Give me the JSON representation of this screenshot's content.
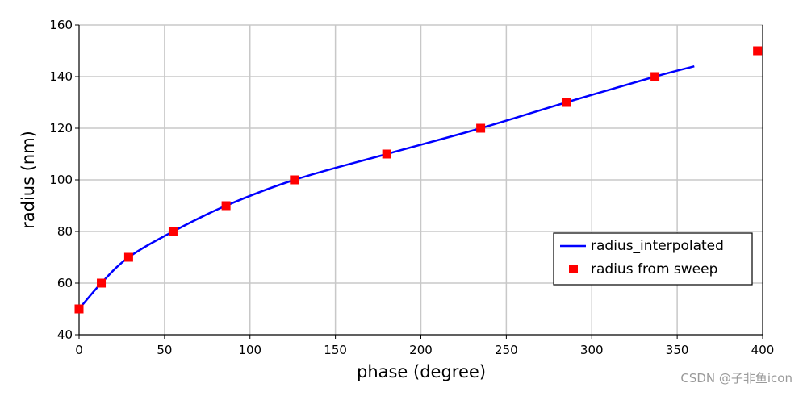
{
  "chart_data": {
    "type": "line",
    "xlabel": "phase (degree)",
    "ylabel": "radius (nm)",
    "xlim": [
      0,
      400
    ],
    "ylim": [
      40,
      160
    ],
    "xticks": [
      0,
      50,
      100,
      150,
      200,
      250,
      300,
      350,
      400
    ],
    "yticks": [
      40,
      60,
      80,
      100,
      120,
      140,
      160
    ],
    "grid": true,
    "legend_position": "lower-right",
    "series": [
      {
        "name": "radius_interpolated",
        "kind": "line",
        "color": "#0000ff",
        "x": [
          0,
          13,
          29,
          55,
          86,
          126,
          180,
          235,
          285,
          337,
          360
        ],
        "y": [
          50,
          60,
          70,
          80,
          90,
          100,
          110,
          120,
          130,
          140,
          144
        ]
      },
      {
        "name": "radius from sweep",
        "kind": "scatter",
        "marker": "square",
        "color": "#ff0000",
        "x": [
          0,
          13,
          29,
          55,
          86,
          126,
          180,
          235,
          285,
          337,
          397
        ],
        "y": [
          50,
          60,
          70,
          80,
          90,
          100,
          110,
          120,
          130,
          140,
          150
        ]
      }
    ]
  },
  "watermark": "CSDN @子非鱼icon"
}
